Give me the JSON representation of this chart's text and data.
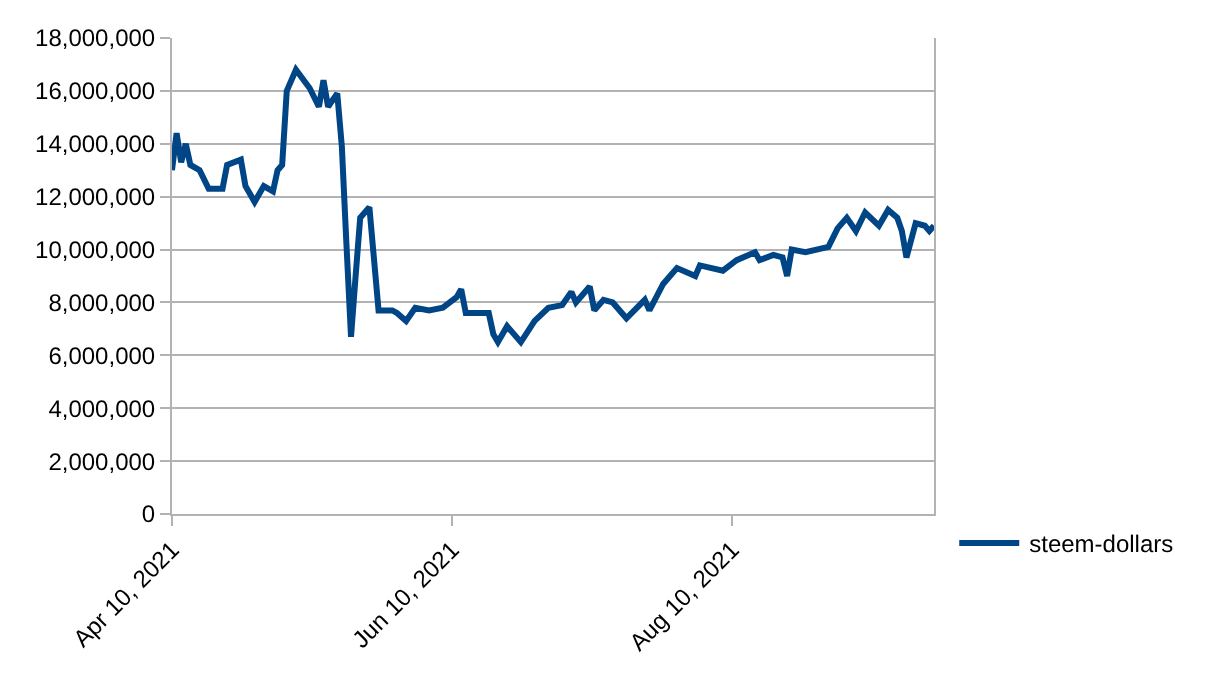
{
  "chart_data": {
    "type": "line",
    "x": [
      "2021-04-10",
      "2021-04-11",
      "2021-04-12",
      "2021-04-13",
      "2021-04-14",
      "2021-04-16",
      "2021-04-18",
      "2021-04-21",
      "2021-04-22",
      "2021-04-25",
      "2021-04-26",
      "2021-04-28",
      "2021-04-30",
      "2021-05-02",
      "2021-05-03",
      "2021-05-04",
      "2021-05-05",
      "2021-05-07",
      "2021-05-10",
      "2021-05-12",
      "2021-05-13",
      "2021-05-14",
      "2021-05-16",
      "2021-05-17",
      "2021-05-18",
      "2021-05-19",
      "2021-05-20",
      "2021-05-21",
      "2021-05-23",
      "2021-05-25",
      "2021-05-28",
      "2021-05-29",
      "2021-05-31",
      "2021-06-02",
      "2021-06-05",
      "2021-06-08",
      "2021-06-11",
      "2021-06-12",
      "2021-06-13",
      "2021-06-18",
      "2021-06-19",
      "2021-06-20",
      "2021-06-22",
      "2021-06-25",
      "2021-06-28",
      "2021-07-01",
      "2021-07-04",
      "2021-07-06",
      "2021-07-07",
      "2021-07-10",
      "2021-07-11",
      "2021-07-13",
      "2021-07-15",
      "2021-07-18",
      "2021-07-22",
      "2021-07-23",
      "2021-07-26",
      "2021-07-29",
      "2021-08-02",
      "2021-08-03",
      "2021-08-08",
      "2021-08-11",
      "2021-08-15",
      "2021-08-16",
      "2021-08-19",
      "2021-08-21",
      "2021-08-22",
      "2021-08-23",
      "2021-08-26",
      "2021-08-31",
      "2021-09-02",
      "2021-09-04",
      "2021-09-06",
      "2021-09-08",
      "2021-09-11",
      "2021-09-13",
      "2021-09-15",
      "2021-09-16",
      "2021-09-17",
      "2021-09-19",
      "2021-09-21",
      "2021-09-22",
      "2021-09-23"
    ],
    "series": [
      {
        "name": "steem-dollars",
        "color": "#004586",
        "values": [
          13000000,
          14400000,
          13300000,
          14000000,
          13200000,
          13000000,
          12300000,
          12300000,
          13200000,
          13400000,
          12400000,
          11800000,
          12400000,
          12200000,
          13000000,
          13200000,
          16000000,
          16800000,
          16100000,
          15400000,
          16400000,
          15400000,
          15900000,
          13900000,
          10200000,
          6700000,
          9000000,
          11200000,
          11600000,
          7700000,
          7700000,
          7600000,
          7300000,
          7800000,
          7700000,
          7800000,
          8200000,
          8500000,
          7600000,
          7600000,
          6800000,
          6500000,
          7100000,
          6500000,
          7300000,
          7800000,
          7900000,
          8400000,
          8000000,
          8600000,
          7700000,
          8100000,
          8000000,
          7400000,
          8100000,
          7700000,
          8700000,
          9300000,
          9000000,
          9400000,
          9200000,
          9600000,
          9900000,
          9600000,
          9800000,
          9700000,
          9000000,
          10000000,
          9900000,
          10100000,
          10800000,
          11200000,
          10700000,
          11400000,
          10900000,
          11500000,
          11200000,
          10700000,
          9700000,
          11000000,
          10900000,
          10700000,
          10900000
        ]
      }
    ],
    "xlim": [
      "2021-04-10",
      "2021-09-23"
    ],
    "xticks": [
      {
        "value": "2021-04-10",
        "label": "Apr 10, 2021"
      },
      {
        "value": "2021-06-10",
        "label": "Jun 10, 2021"
      },
      {
        "value": "2021-08-10",
        "label": "Aug 10, 2021"
      }
    ],
    "ylim": [
      0,
      18000000
    ],
    "yticks": [
      {
        "value": 0,
        "label": "0"
      },
      {
        "value": 2000000,
        "label": "2,000,000"
      },
      {
        "value": 4000000,
        "label": "4,000,000"
      },
      {
        "value": 6000000,
        "label": "6,000,000"
      },
      {
        "value": 8000000,
        "label": "8,000,000"
      },
      {
        "value": 10000000,
        "label": "10,000,000"
      },
      {
        "value": 12000000,
        "label": "12,000,000"
      },
      {
        "value": 14000000,
        "label": "14,000,000"
      },
      {
        "value": 16000000,
        "label": "16,000,000"
      },
      {
        "value": 18000000,
        "label": "18,000,000"
      }
    ],
    "grid": "y",
    "legend": "right",
    "marker": "none",
    "line_style": "solid"
  }
}
